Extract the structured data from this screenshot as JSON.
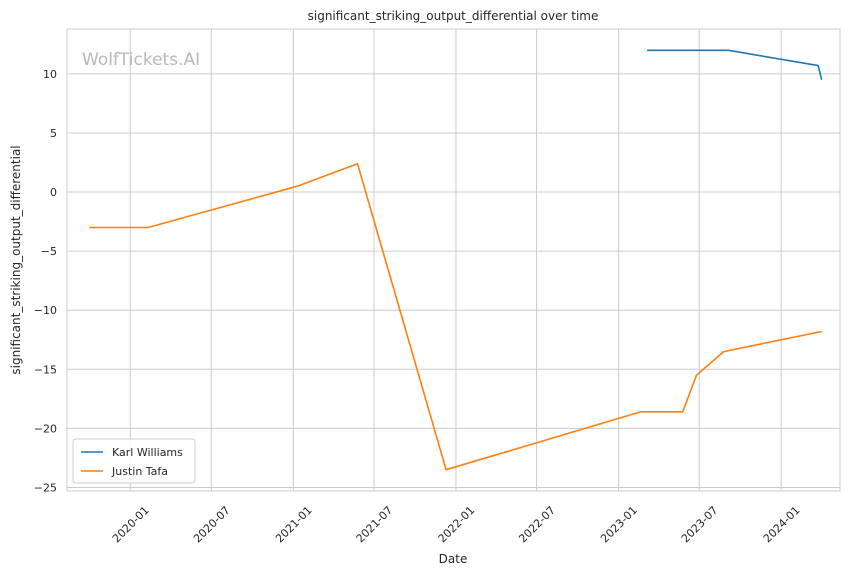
{
  "watermark": "WolfTickets.AI",
  "chart_data": {
    "type": "line",
    "title": "significant_striking_output_differential over time",
    "xlabel": "Date",
    "ylabel": "significant_striking_output_differential",
    "x_ticks": [
      "2020-01",
      "2020-07",
      "2021-01",
      "2021-07",
      "2022-01",
      "2022-07",
      "2023-01",
      "2023-07",
      "2024-01"
    ],
    "y_ticks": [
      10,
      5,
      0,
      -5,
      -10,
      -15,
      -20,
      -25
    ],
    "ylim": [
      -25.3,
      13.8
    ],
    "xlim": [
      "2019-08-12",
      "2024-05-12"
    ],
    "grid": true,
    "legend_position": "lower-left",
    "series": [
      {
        "name": "Karl Williams",
        "color": "#1f77b4",
        "points": [
          {
            "x": "2023-03-06",
            "y": 12.0
          },
          {
            "x": "2023-09-05",
            "y": 12.0
          },
          {
            "x": "2024-03-24",
            "y": 10.7
          },
          {
            "x": "2024-04-01",
            "y": 9.5
          }
        ]
      },
      {
        "name": "Justin Tafa",
        "color": "#ff7f0e",
        "points": [
          {
            "x": "2019-10-01",
            "y": -3.0
          },
          {
            "x": "2020-02-10",
            "y": -3.0
          },
          {
            "x": "2021-01-10",
            "y": 0.5
          },
          {
            "x": "2021-05-25",
            "y": 2.4
          },
          {
            "x": "2021-12-10",
            "y": -23.5
          },
          {
            "x": "2023-02-20",
            "y": -18.6
          },
          {
            "x": "2023-05-25",
            "y": -18.6
          },
          {
            "x": "2023-06-25",
            "y": -15.5
          },
          {
            "x": "2023-08-25",
            "y": -13.5
          },
          {
            "x": "2024-04-01",
            "y": -11.8
          }
        ]
      }
    ]
  }
}
